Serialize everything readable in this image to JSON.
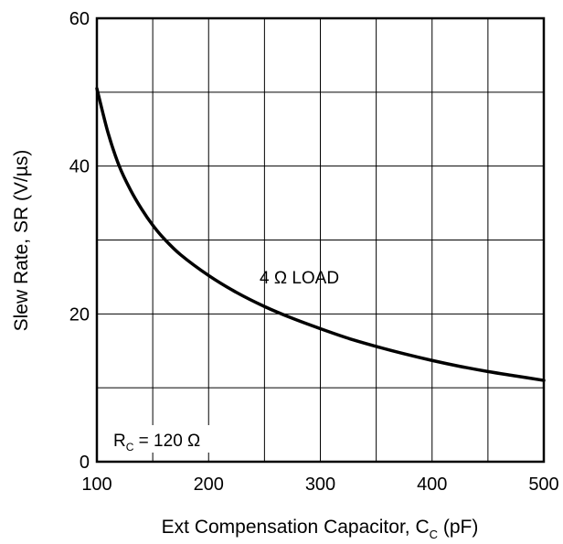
{
  "chart_data": {
    "type": "line",
    "title": "",
    "xlabel": "Ext Compensation Capacitor, C",
    "xlabel_sub": "C",
    "xlabel_unit": " (pF)",
    "ylabel": "Slew Rate, SR (V/µs)",
    "xlim": [
      100,
      500
    ],
    "ylim": [
      0,
      60
    ],
    "x_ticks": [
      100,
      200,
      300,
      400,
      500
    ],
    "y_ticks": [
      0,
      20,
      40,
      60
    ],
    "x_gridlines": [
      100,
      150,
      200,
      250,
      300,
      350,
      400,
      450,
      500
    ],
    "y_gridlines": [
      0,
      10,
      20,
      30,
      40,
      50,
      60
    ],
    "grid": true,
    "series": [
      {
        "x": [
          100,
          110,
          120,
          130,
          140,
          150,
          160,
          175,
          200,
          225,
          250,
          275,
          300,
          325,
          350,
          375,
          400,
          425,
          450,
          475,
          500
        ],
        "values": [
          50.5,
          44.5,
          40.0,
          36.8,
          34.2,
          32.0,
          30.2,
          28.0,
          25.2,
          22.9,
          21.0,
          19.4,
          18.0,
          16.7,
          15.6,
          14.6,
          13.7,
          12.9,
          12.2,
          11.6,
          11.0
        ],
        "color": "#000000"
      }
    ],
    "annotations": {
      "load": "4 Ω LOAD",
      "rc_main": "R",
      "rc_sub": "C",
      "rc_rest": " = 120 Ω"
    }
  }
}
